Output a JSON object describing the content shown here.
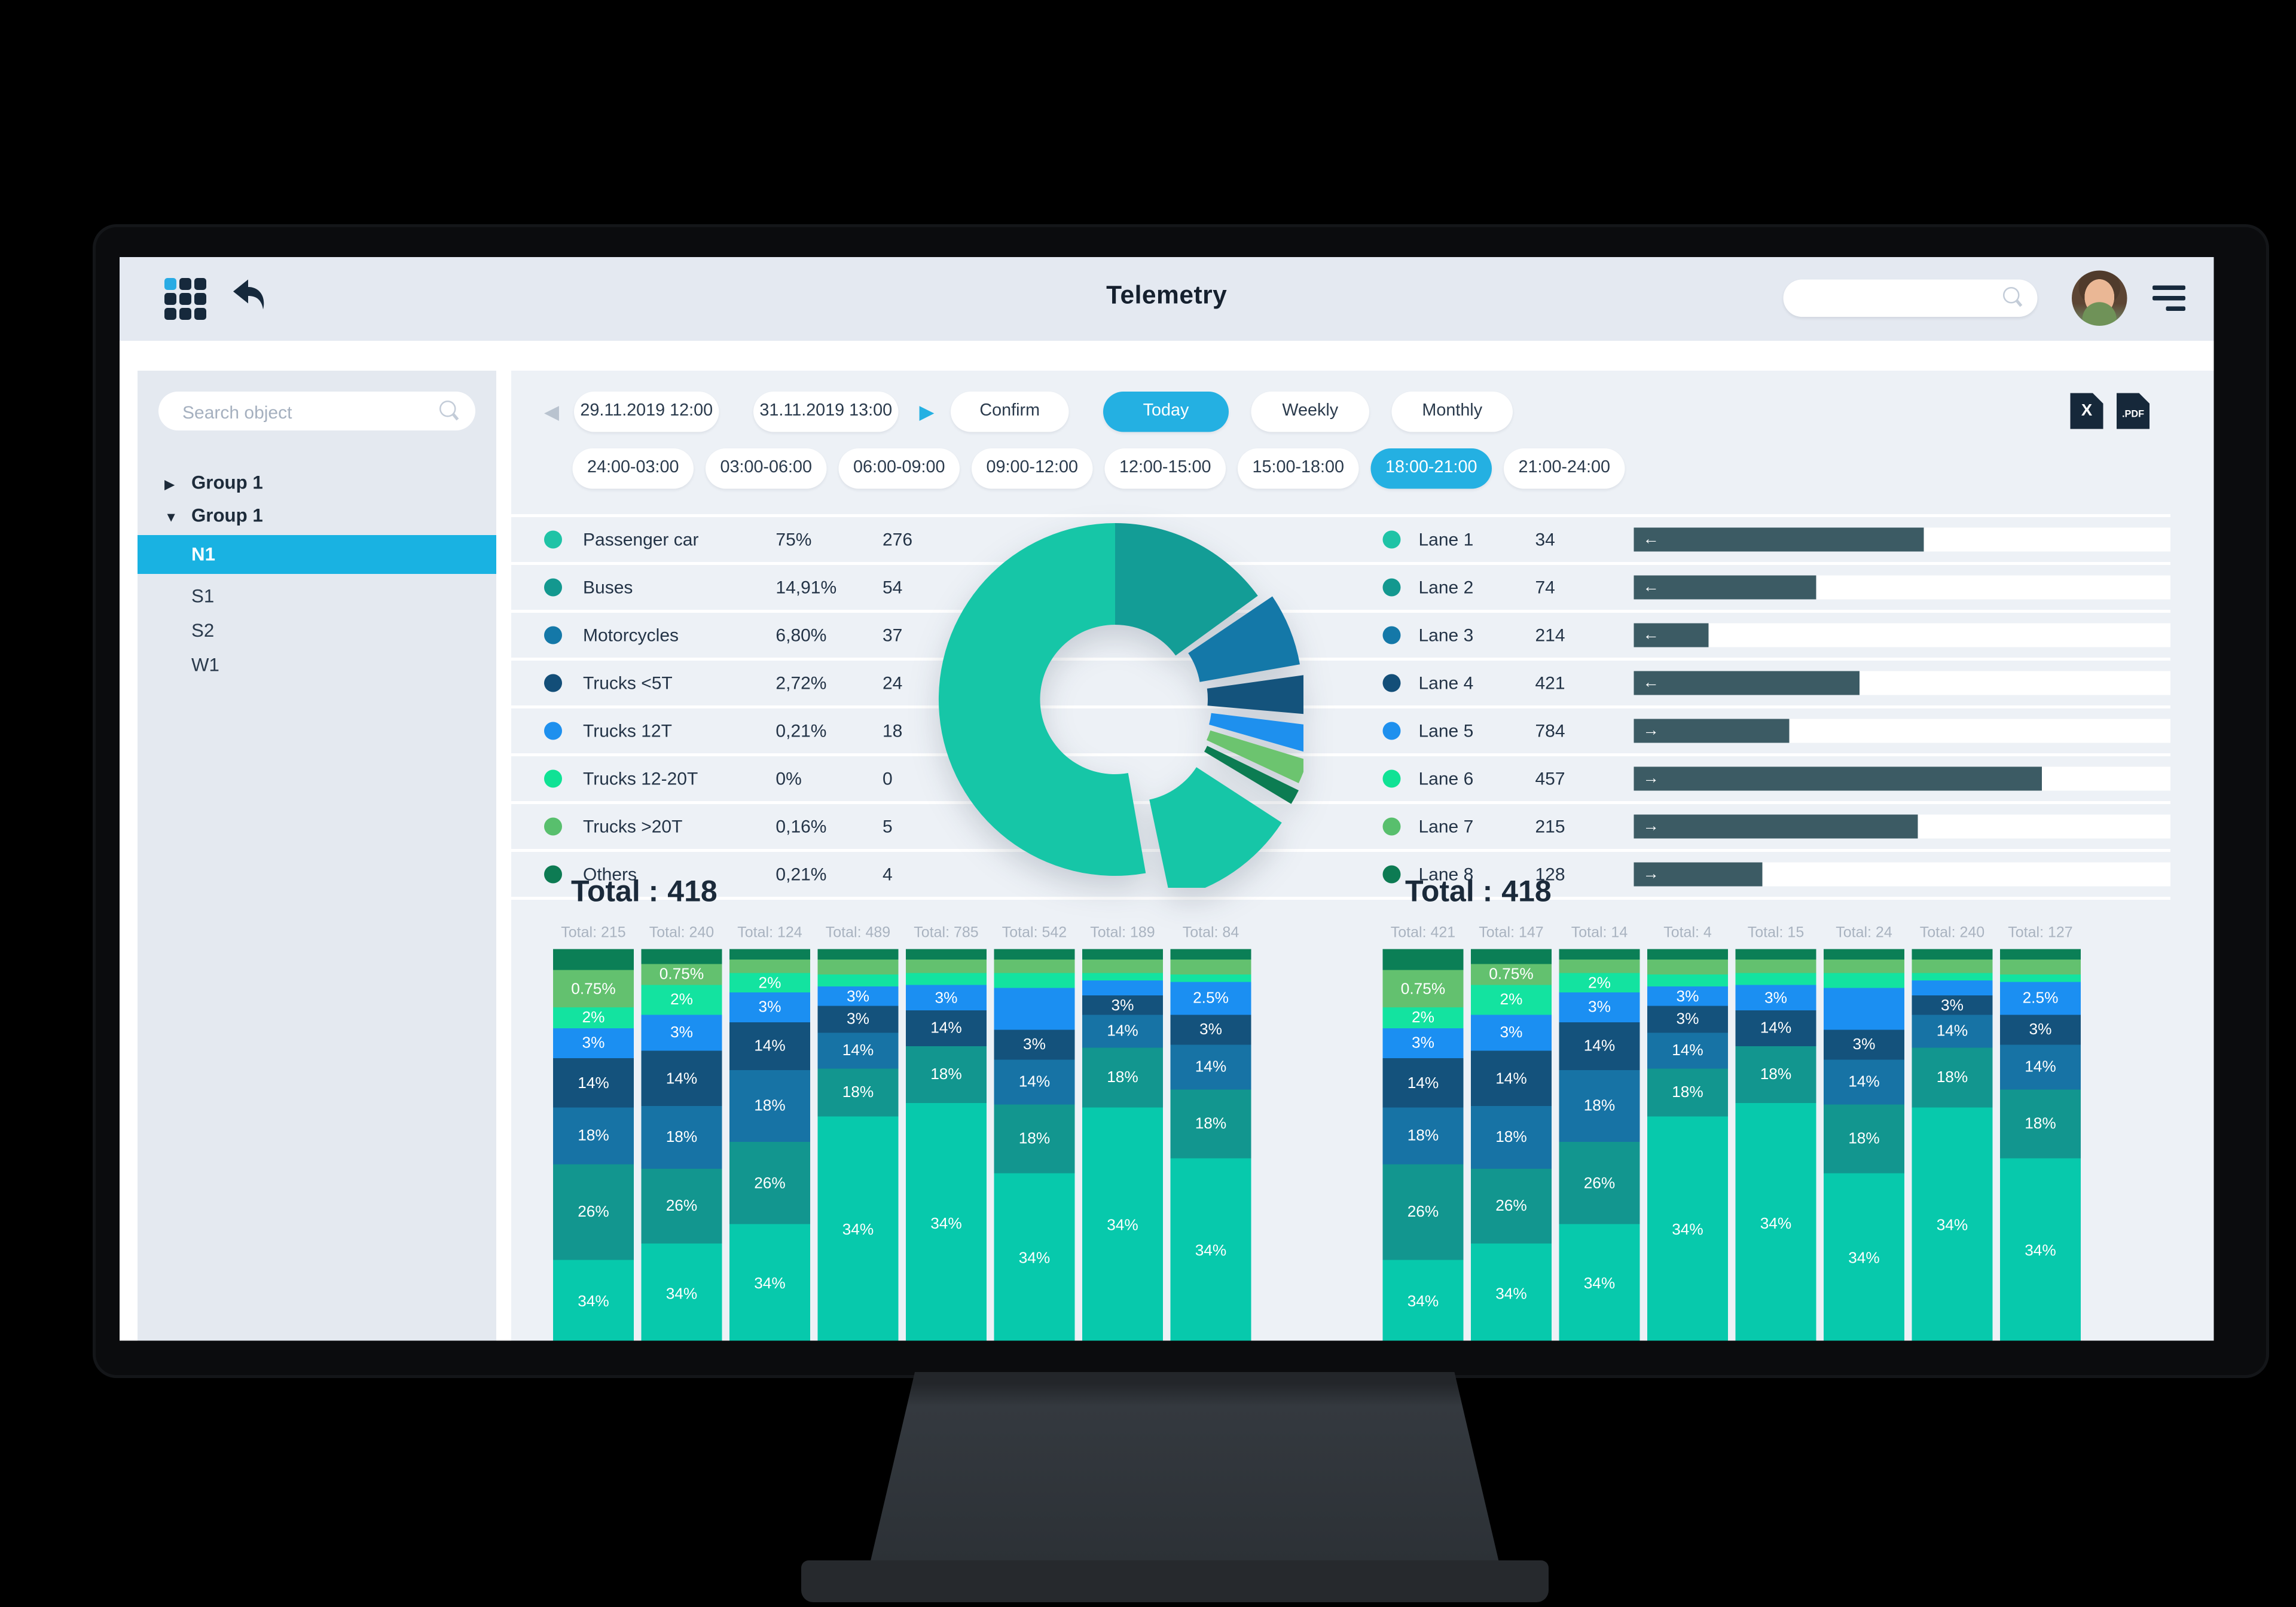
{
  "topbar": {
    "title": "Telemetry",
    "search_placeholder": ""
  },
  "sidebar": {
    "search_placeholder": "Search object",
    "groups": [
      {
        "label": "Group 1",
        "state": "collapsed"
      },
      {
        "label": "Group 1",
        "state": "expanded"
      }
    ],
    "items": [
      "N1",
      "S1",
      "S2",
      "W1"
    ],
    "selected_item": "N1",
    "icons": {
      "collapsed": "▶",
      "expanded": "▼"
    }
  },
  "controls": {
    "prev_icon": "◀",
    "next_icon": "▶",
    "date_from": "29.11.2019 12:00",
    "date_to": "31.11.2019 13:00",
    "confirm_label": "Confirm",
    "range_tabs": [
      {
        "label": "Today",
        "selected": true
      },
      {
        "label": "Weekly",
        "selected": false
      },
      {
        "label": "Monthly",
        "selected": false
      }
    ],
    "time_slots": [
      {
        "label": "24:00-03:00",
        "selected": false
      },
      {
        "label": "03:00-06:00",
        "selected": false
      },
      {
        "label": "06:00-09:00",
        "selected": false
      },
      {
        "label": "09:00-12:00",
        "selected": false
      },
      {
        "label": "12:00-15:00",
        "selected": false
      },
      {
        "label": "15:00-18:00",
        "selected": false
      },
      {
        "label": "18:00-21:00",
        "selected": true
      },
      {
        "label": "21:00-24:00",
        "selected": false
      }
    ],
    "export_buttons": [
      {
        "label": "X",
        "name": "export-excel"
      },
      {
        "label": ".PDF",
        "name": "export-pdf"
      }
    ]
  },
  "vehicle_legend": [
    {
      "name": "Passenger car",
      "pct": "75%",
      "count": "276",
      "color": "#1fc3a6"
    },
    {
      "name": "Buses",
      "pct": "14,91%",
      "count": "54",
      "color": "#13988f"
    },
    {
      "name": "Motorcycles",
      "pct": "6,80%",
      "count": "37",
      "color": "#1478a8"
    },
    {
      "name": "Trucks <5T",
      "pct": "2,72%",
      "count": "24",
      "color": "#134e78"
    },
    {
      "name": "Trucks 12T",
      "pct": "0,21%",
      "count": "18",
      "color": "#1e90ee"
    },
    {
      "name": "Trucks 12-20T",
      "pct": "0%",
      "count": "0",
      "color": "#10e295"
    },
    {
      "name": "Trucks >20T",
      "pct": "0,16%",
      "count": "5",
      "color": "#58bf6d"
    },
    {
      "name": "Others",
      "pct": "0,21%",
      "count": "4",
      "color": "#0d7b53"
    }
  ],
  "donut": {
    "outer_r": 118,
    "inner_r": 50,
    "slices": [
      {
        "name": "Buses",
        "color": "#139d96",
        "a0": 0,
        "a1": 54,
        "ex": 0
      },
      {
        "name": "Motorcycles",
        "color": "#1478a8",
        "a0": 56,
        "a1": 80,
        "ex": 8
      },
      {
        "name": "Trucks <5T",
        "color": "#14537c",
        "a0": 82,
        "a1": 95,
        "ex": 12
      },
      {
        "name": "Trucks 12T",
        "color": "#1e90ee",
        "a0": 97,
        "a1": 106,
        "ex": 15
      },
      {
        "name": "Trucks >20T",
        "color": "#6cc46f",
        "a0": 107,
        "a1": 115,
        "ex": 17
      },
      {
        "name": "Others",
        "color": "#0c7c52",
        "a0": 116,
        "a1": 121,
        "ex": 19
      },
      {
        "name": "Passenger car",
        "color": "#16c6a7",
        "a0": 123,
        "a1": 168,
        "ex": 22
      },
      {
        "name": "Passenger car",
        "color": "#16c6a7",
        "a0": 170,
        "a1": 360,
        "ex": 0
      }
    ]
  },
  "lanes": [
    {
      "name": "Lane 1",
      "count": "34",
      "dir": "left",
      "fill": 0.54,
      "color": "#1fc3a6"
    },
    {
      "name": "Lane 2",
      "count": "74",
      "dir": "left",
      "fill": 0.34,
      "color": "#13988f"
    },
    {
      "name": "Lane 3",
      "count": "214",
      "dir": "left",
      "fill": 0.14,
      "color": "#1478a8"
    },
    {
      "name": "Lane 4",
      "count": "421",
      "dir": "left",
      "fill": 0.42,
      "color": "#134e78"
    },
    {
      "name": "Lane 5",
      "count": "784",
      "dir": "right",
      "fill": 0.29,
      "color": "#1e90ee"
    },
    {
      "name": "Lane 6",
      "count": "457",
      "dir": "right",
      "fill": 0.76,
      "color": "#10e295"
    },
    {
      "name": "Lane 7",
      "count": "215",
      "dir": "right",
      "fill": 0.53,
      "color": "#58bf6d"
    },
    {
      "name": "Lane 8",
      "count": "128",
      "dir": "right",
      "fill": 0.24,
      "color": "#0d7b53"
    }
  ],
  "arrows": {
    "left": "←",
    "right": "→"
  },
  "totals": {
    "label": "Total :",
    "left_value": "418",
    "right_value": "418"
  },
  "stacked": {
    "palette": {
      "g1": "#0b7f56",
      "g2": "#63c16f",
      "g3": "#13e3a0",
      "b1": "#1b8ff2",
      "n1": "#14527c",
      "s1": "#1773a5",
      "t1": "#12968f",
      "t2": "#07c9ac"
    },
    "left_totals": [
      "Total: 215",
      "Total: 240",
      "Total: 124",
      "Total: 489",
      "Total: 785",
      "Total: 542",
      "Total: 189",
      "Total: 84"
    ],
    "right_totals": [
      "Total: 421",
      "Total: 147",
      "Total: 14",
      "Total: 4",
      "Total: 15",
      "Total: 24",
      "Total: 240",
      "Total: 127"
    ],
    "columns": [
      {
        "segments": [
          {
            "c": "g1",
            "h": 14
          },
          {
            "c": "g2",
            "h": 25,
            "label": "0.75%"
          },
          {
            "c": "g3",
            "h": 14,
            "label": "2%"
          },
          {
            "c": "b1",
            "h": 20,
            "label": "3%"
          },
          {
            "c": "n1",
            "h": 33,
            "label": "14%"
          },
          {
            "c": "s1",
            "h": 38,
            "label": "18%"
          },
          {
            "c": "t1",
            "h": 64,
            "label": "26%"
          },
          {
            "c": "t2",
            "label": "34%"
          }
        ]
      },
      {
        "segments": [
          {
            "c": "g1",
            "h": 10
          },
          {
            "c": "g2",
            "h": 14,
            "label": "0.75%"
          },
          {
            "c": "g3",
            "h": 20,
            "label": "2%"
          },
          {
            "c": "b1",
            "h": 24,
            "label": "3%"
          },
          {
            "c": "n1",
            "h": 37,
            "label": "14%"
          },
          {
            "c": "s1",
            "h": 42,
            "label": "18%"
          },
          {
            "c": "t1",
            "h": 50,
            "label": "26%"
          },
          {
            "c": "t2",
            "label": "34%"
          }
        ]
      },
      {
        "segments": [
          {
            "c": "g1",
            "h": 7
          },
          {
            "c": "g2",
            "h": 9
          },
          {
            "c": "g3",
            "h": 13,
            "label": "2%"
          },
          {
            "c": "b1",
            "h": 20,
            "label": "3%"
          },
          {
            "c": "n1",
            "h": 32,
            "label": "14%"
          },
          {
            "c": "s1",
            "h": 48,
            "label": "18%"
          },
          {
            "c": "t1",
            "h": 55,
            "label": "26%"
          },
          {
            "c": "t2",
            "label": "34%"
          }
        ]
      },
      {
        "segments": [
          {
            "c": "g1",
            "h": 7
          },
          {
            "c": "g2",
            "h": 10
          },
          {
            "c": "g3",
            "h": 8
          },
          {
            "c": "b1",
            "h": 13,
            "label": "3%"
          },
          {
            "c": "n1",
            "h": 18,
            "label": "3%"
          },
          {
            "c": "s1",
            "h": 24,
            "label": "14%"
          },
          {
            "c": "t1",
            "h": 32,
            "label": "18%"
          },
          {
            "c": "t2",
            "label": "34%"
          }
        ]
      },
      {
        "segments": [
          {
            "c": "g1",
            "h": 7
          },
          {
            "c": "g2",
            "h": 9
          },
          {
            "c": "g3",
            "h": 8
          },
          {
            "c": "b1",
            "h": 17,
            "label": "3%"
          },
          {
            "c": "n1",
            "h": 24,
            "label": "14%"
          },
          {
            "c": "t1",
            "h": 38,
            "label": "18%"
          },
          {
            "c": "t2",
            "label": "34%"
          }
        ]
      },
      {
        "segments": [
          {
            "c": "g1",
            "h": 7
          },
          {
            "c": "g2",
            "h": 9
          },
          {
            "c": "g3",
            "h": 10
          },
          {
            "c": "b1",
            "h": 28
          },
          {
            "c": "n1",
            "h": 20,
            "label": "3%"
          },
          {
            "c": "s1",
            "h": 30,
            "label": "14%"
          },
          {
            "c": "t1",
            "h": 46,
            "label": "18%"
          },
          {
            "c": "t2",
            "label": "34%"
          }
        ]
      },
      {
        "segments": [
          {
            "c": "g1",
            "h": 7
          },
          {
            "c": "g2",
            "h": 9
          },
          {
            "c": "g3",
            "h": 5
          },
          {
            "c": "b1",
            "h": 10
          },
          {
            "c": "n1",
            "h": 13,
            "label": "3%"
          },
          {
            "c": "s1",
            "h": 22,
            "label": "14%"
          },
          {
            "c": "t1",
            "h": 40,
            "label": "18%"
          },
          {
            "c": "t2",
            "label": "34%"
          }
        ]
      },
      {
        "segments": [
          {
            "c": "g1",
            "h": 7
          },
          {
            "c": "g2",
            "h": 10
          },
          {
            "c": "g3",
            "h": 5
          },
          {
            "c": "b1",
            "h": 22,
            "label": "2.5%"
          },
          {
            "c": "n1",
            "h": 20,
            "label": "3%"
          },
          {
            "c": "s1",
            "h": 30,
            "label": "14%"
          },
          {
            "c": "t1",
            "h": 46,
            "label": "18%"
          },
          {
            "c": "t2",
            "label": "34%"
          }
        ]
      }
    ]
  }
}
